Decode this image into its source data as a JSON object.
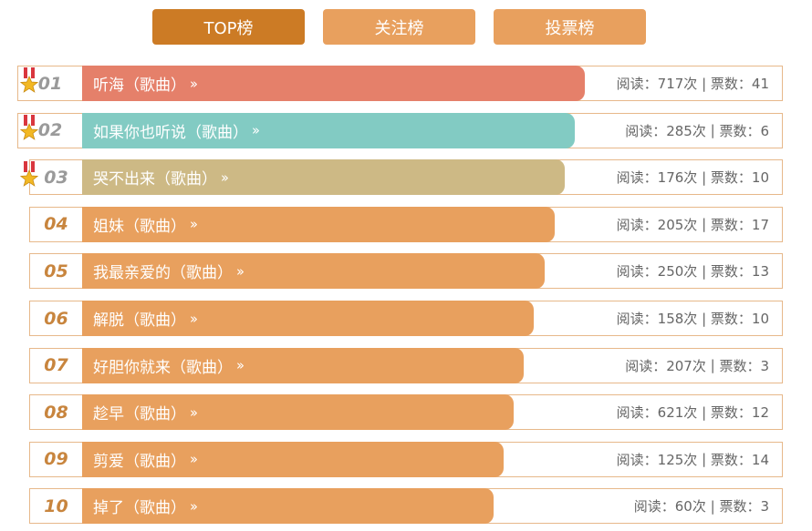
{
  "tabs": [
    {
      "label": "TOP榜",
      "active": true
    },
    {
      "label": "关注榜",
      "active": false
    },
    {
      "label": "投票榜",
      "active": false
    }
  ],
  "colors": {
    "tab_active": "#cc7b25",
    "tab_inactive": "#e8a05e",
    "rank1": "#e5806a",
    "rank2": "#82cbc3",
    "rank3": "#cdb985",
    "default_bar": "#e8a05e",
    "row_border": "#e7b88a"
  },
  "rankings": [
    {
      "rank": "01",
      "title": "听海（歌曲）",
      "reads": "阅读：717次",
      "votes": "票数：41",
      "medal": "medal-icon",
      "fill_percent": 71.7
    },
    {
      "rank": "02",
      "title": "如果你也听说（歌曲）",
      "reads": "阅读：285次",
      "votes": "票数：6",
      "medal": "medal-icon",
      "fill_percent": 70.2
    },
    {
      "rank": "03",
      "title": "哭不出来（歌曲）",
      "reads": "阅读：176次",
      "votes": "票数：10",
      "medal": "medal-icon",
      "fill_percent": 68.8
    },
    {
      "rank": "04",
      "title": "姐妹（歌曲）",
      "reads": "阅读：205次",
      "votes": "票数：17",
      "fill_percent": 67.3
    },
    {
      "rank": "05",
      "title": "我最亲爱的（歌曲）",
      "reads": "阅读：250次",
      "votes": "票数：13",
      "fill_percent": 65.9
    },
    {
      "rank": "06",
      "title": "解脱（歌曲）",
      "reads": "阅读：158次",
      "votes": "票数：10",
      "fill_percent": 64.4
    },
    {
      "rank": "07",
      "title": "好胆你就来（歌曲）",
      "reads": "阅读：207次",
      "votes": "票数：3",
      "fill_percent": 63.0
    },
    {
      "rank": "08",
      "title": "趁早（歌曲）",
      "reads": "阅读：621次",
      "votes": "票数：12",
      "fill_percent": 61.5
    },
    {
      "rank": "09",
      "title": "剪爱（歌曲）",
      "reads": "阅读：125次",
      "votes": "票数：14",
      "fill_percent": 60.1
    },
    {
      "rank": "10",
      "title": "掉了（歌曲）",
      "reads": "阅读：60次",
      "votes": "票数：3",
      "fill_percent": 58.7
    }
  ],
  "separator": " | ",
  "arrow_glyph": "›› "
}
